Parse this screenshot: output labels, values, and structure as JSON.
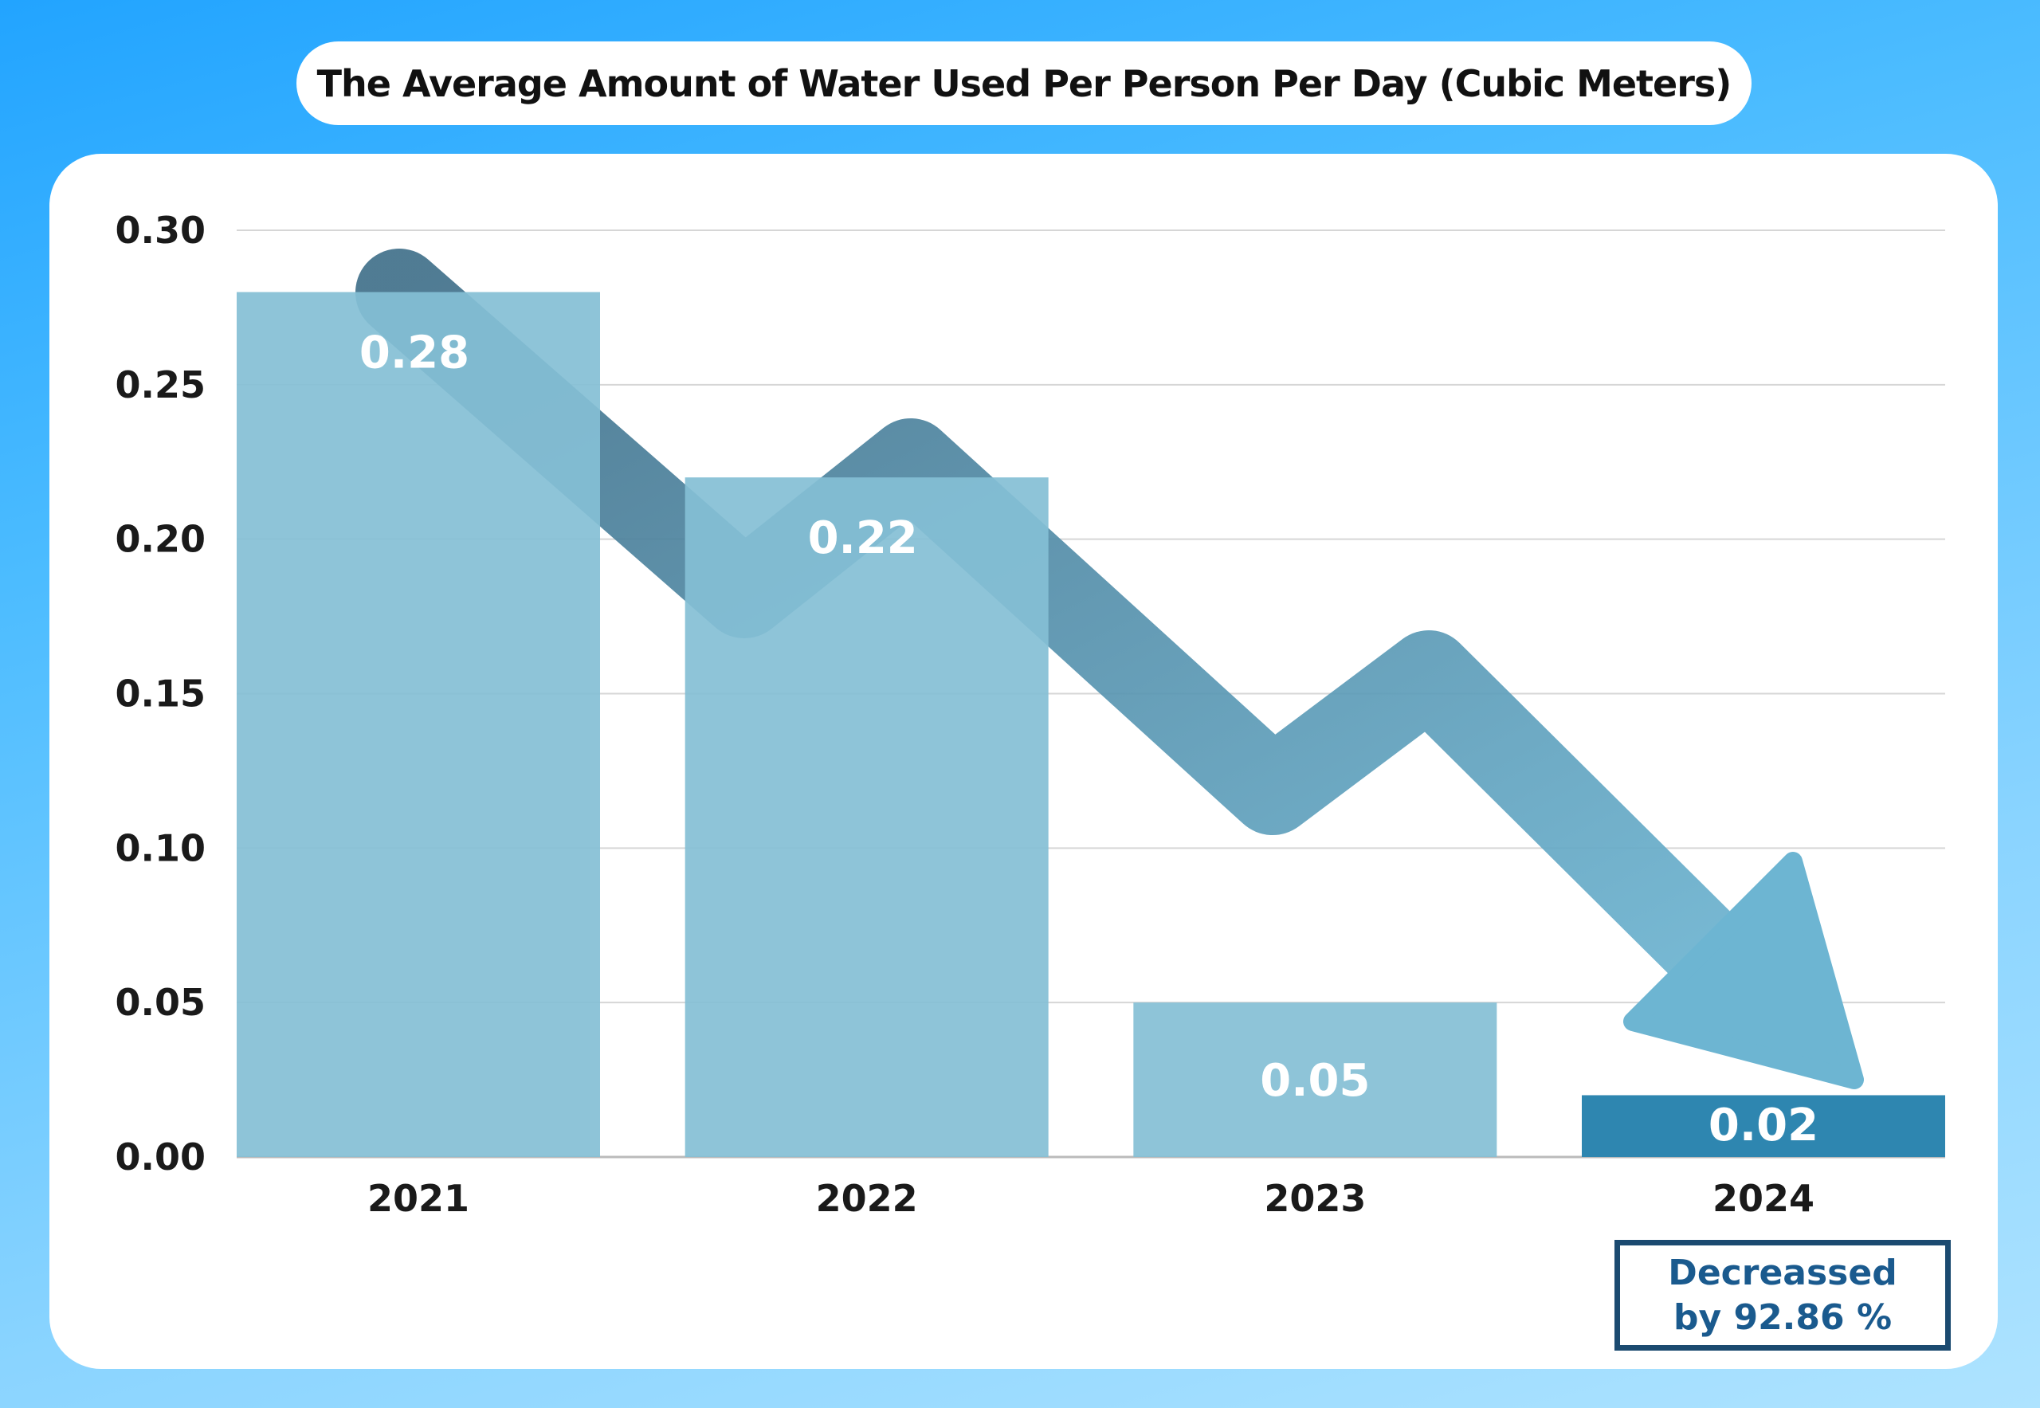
{
  "chart_data": {
    "type": "bar",
    "title": "The Average Amount of Water Used Per Person Per Day (Cubic Meters)",
    "categories": [
      "2021",
      "2022",
      "2023",
      "2024"
    ],
    "values": [
      0.28,
      0.22,
      0.05,
      0.02
    ],
    "data_labels": [
      "0.28",
      "0.22",
      "0.05",
      "0.02"
    ],
    "y_ticks": [
      "0.00",
      "0.05",
      "0.10",
      "0.15",
      "0.20",
      "0.25",
      "0.30"
    ],
    "ylim": [
      0,
      0.3
    ],
    "grid": true,
    "xlabel": "",
    "ylabel": "",
    "annotation": {
      "line1": "Decreassed",
      "line2": "by  92.86 %"
    },
    "colors": {
      "bar": "#84bfd5",
      "highlight": "#2e86b0",
      "arrow_start": "#41708a",
      "arrow_end": "#6db5d2"
    }
  }
}
